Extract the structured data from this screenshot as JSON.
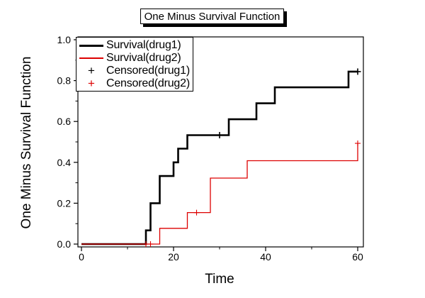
{
  "chart_data": {
    "type": "line",
    "subtype": "kaplan-meier-step",
    "title": "One Minus Survival Function",
    "xlabel": "Time",
    "ylabel": "One Minus Survival Function",
    "xlim": [
      0,
      60
    ],
    "ylim": [
      0.0,
      1.0
    ],
    "grid": false,
    "legend_position": "top-left-inside",
    "x_major_ticks": [
      0,
      20,
      40,
      60
    ],
    "x_tick_labels": [
      "0",
      "20",
      "40",
      "60"
    ],
    "x_minor_ticks": [
      10,
      30,
      50
    ],
    "y_major_ticks": [
      0.0,
      0.2,
      0.4,
      0.6,
      0.8,
      1.0
    ],
    "y_tick_labels": [
      "0.0",
      "0.2",
      "0.4",
      "0.6",
      "0.8",
      "1.0"
    ],
    "y_minor_ticks": [
      0.1,
      0.3,
      0.5,
      0.7,
      0.9
    ],
    "series": [
      {
        "name": "Survival(drug1)",
        "color": "#000000",
        "line_width": 2.6,
        "start": [
          0,
          0
        ],
        "steps": [
          [
            14,
            0.067
          ],
          [
            15,
            0.2
          ],
          [
            17,
            0.333
          ],
          [
            20,
            0.4
          ],
          [
            21,
            0.467
          ],
          [
            23,
            0.533
          ],
          [
            32,
            0.611
          ],
          [
            38,
            0.689
          ],
          [
            42,
            0.767
          ],
          [
            58,
            0.844
          ]
        ],
        "end_time": 60
      },
      {
        "name": "Survival(drug2)",
        "color": "#dd0000",
        "line_width": 1.3,
        "start": [
          0,
          0
        ],
        "steps": [
          [
            17,
            0.077
          ],
          [
            23,
            0.154
          ],
          [
            28,
            0.323
          ],
          [
            36,
            0.408
          ],
          [
            60,
            0.493
          ]
        ],
        "end_time": 60
      }
    ],
    "censored": [
      {
        "name": "Censored(drug1)",
        "color": "#000000",
        "marker": "+",
        "points": [
          [
            30,
            0.533
          ],
          [
            60,
            0.844
          ]
        ]
      },
      {
        "name": "Censored(drug2)",
        "color": "#dd0000",
        "marker": "+",
        "points": [
          [
            14,
            0
          ],
          [
            15,
            0
          ],
          [
            25,
            0.154
          ],
          [
            60,
            0.493
          ]
        ]
      }
    ]
  }
}
